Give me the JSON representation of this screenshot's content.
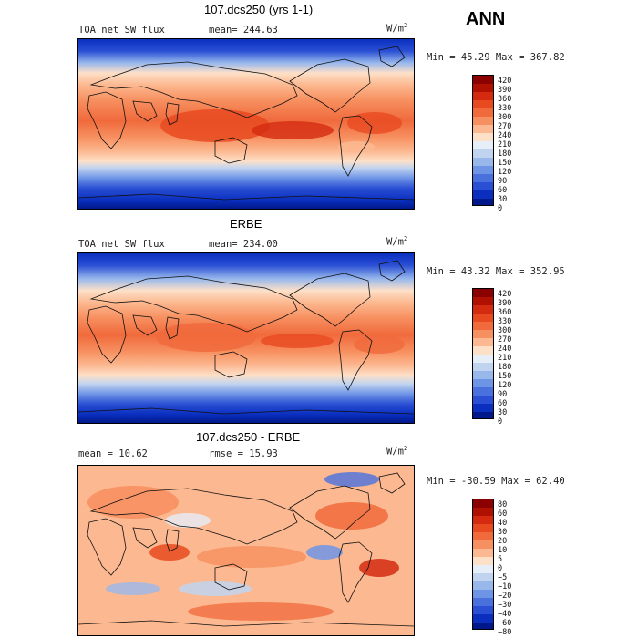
{
  "header": {
    "season": "ANN"
  },
  "panels": [
    {
      "title": "107.dcs250 (yrs 1-1)",
      "left_label": "TOA net SW flux",
      "mid_label": "mean= 244.63",
      "units_base": "W/m",
      "units_exp": "2",
      "range": "Min =  45.29 Max = 367.82",
      "colorbar_levels": [
        "420",
        "390",
        "360",
        "330",
        "300",
        "270",
        "240",
        "210",
        "180",
        "150",
        "120",
        "90",
        "60",
        "30",
        "0"
      ],
      "colorbar_colors": [
        "#8b0000",
        "#b01000",
        "#d42a10",
        "#e84a20",
        "#f06a3c",
        "#f79060",
        "#fcb890",
        "#fde0c8",
        "#e6eef8",
        "#c0d4f0",
        "#98b8ec",
        "#6e94e6",
        "#4a70de",
        "#2a4fd4",
        "#0a2fbf",
        "#00188a"
      ]
    },
    {
      "title": "ERBE",
      "left_label": "TOA net SW flux",
      "mid_label": "mean= 234.00",
      "units_base": "W/m",
      "units_exp": "2",
      "range": "Min =  43.32 Max = 352.95",
      "colorbar_levels": [
        "420",
        "390",
        "360",
        "330",
        "300",
        "270",
        "240",
        "210",
        "180",
        "150",
        "120",
        "90",
        "60",
        "30",
        "0"
      ],
      "colorbar_colors": [
        "#8b0000",
        "#b01000",
        "#d42a10",
        "#e84a20",
        "#f06a3c",
        "#f79060",
        "#fcb890",
        "#fde0c8",
        "#e6eef8",
        "#c0d4f0",
        "#98b8ec",
        "#6e94e6",
        "#4a70de",
        "#2a4fd4",
        "#0a2fbf",
        "#00188a"
      ]
    },
    {
      "title": "107.dcs250 - ERBE",
      "left_label": "mean =   10.62",
      "mid_label": "rmse =   15.93",
      "units_base": "W/m",
      "units_exp": "2",
      "range": "Min = -30.59 Max =  62.40",
      "colorbar_levels": [
        "80",
        "60",
        "40",
        "30",
        "20",
        "10",
        "5",
        "0",
        "−5",
        "−10",
        "−20",
        "−30",
        "−40",
        "−60",
        "−80"
      ],
      "colorbar_colors": [
        "#8b0000",
        "#b01000",
        "#d42a10",
        "#e84a20",
        "#f06a3c",
        "#f79060",
        "#fcb890",
        "#fde0c8",
        "#e6eef8",
        "#c0d4f0",
        "#98b8ec",
        "#6e94e6",
        "#4a70de",
        "#2a4fd4",
        "#0a2fbf",
        "#00188a"
      ]
    }
  ]
}
